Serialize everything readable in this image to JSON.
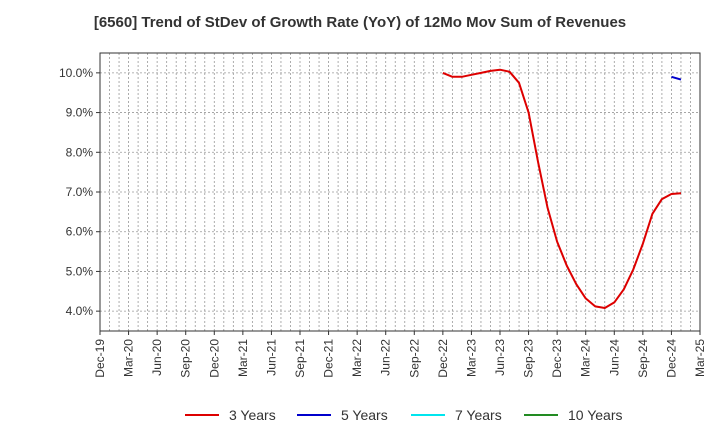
{
  "chart_data": {
    "type": "line",
    "title": "[6560]  Trend of StDev of Growth Rate (YoY) of 12Mo Mov Sum of Revenues",
    "xlabel": "",
    "ylabel": "",
    "ylim": [
      3.5,
      10.5
    ],
    "y_ticks": [
      4.0,
      5.0,
      6.0,
      7.0,
      8.0,
      9.0,
      10.0
    ],
    "y_tick_labels": [
      "4.0%",
      "5.0%",
      "6.0%",
      "7.0%",
      "8.0%",
      "9.0%",
      "10.0%"
    ],
    "x_ticks": [
      "Dec-19",
      "Mar-20",
      "Jun-20",
      "Sep-20",
      "Dec-20",
      "Mar-21",
      "Jun-21",
      "Sep-21",
      "Dec-21",
      "Mar-22",
      "Jun-22",
      "Sep-22",
      "Dec-22",
      "Mar-23",
      "Jun-23",
      "Sep-23",
      "Dec-23",
      "Mar-24",
      "Jun-24",
      "Sep-24",
      "Dec-24",
      "Mar-25"
    ],
    "grid": true,
    "legend_position": "bottom",
    "series": [
      {
        "name": "3 Years",
        "color": "#dd0000",
        "points": [
          {
            "x": 36,
            "y": 10.0
          },
          {
            "x": 37,
            "y": 9.9
          },
          {
            "x": 38,
            "y": 9.9
          },
          {
            "x": 39,
            "y": 9.95
          },
          {
            "x": 40,
            "y": 10.0
          },
          {
            "x": 41,
            "y": 10.05
          },
          {
            "x": 42,
            "y": 10.08
          },
          {
            "x": 43,
            "y": 10.03
          },
          {
            "x": 44,
            "y": 9.75
          },
          {
            "x": 45,
            "y": 9.0
          },
          {
            "x": 46,
            "y": 7.75
          },
          {
            "x": 47,
            "y": 6.6
          },
          {
            "x": 48,
            "y": 5.75
          },
          {
            "x": 49,
            "y": 5.15
          },
          {
            "x": 50,
            "y": 4.68
          },
          {
            "x": 51,
            "y": 4.32
          },
          {
            "x": 52,
            "y": 4.12
          },
          {
            "x": 53,
            "y": 4.08
          },
          {
            "x": 54,
            "y": 4.22
          },
          {
            "x": 55,
            "y": 4.55
          },
          {
            "x": 56,
            "y": 5.05
          },
          {
            "x": 57,
            "y": 5.7
          },
          {
            "x": 58,
            "y": 6.45
          },
          {
            "x": 59,
            "y": 6.82
          },
          {
            "x": 60,
            "y": 6.95
          },
          {
            "x": 61,
            "y": 6.97
          }
        ]
      },
      {
        "name": "5 Years",
        "color": "#0000cc",
        "points": [
          {
            "x": 60,
            "y": 9.9
          },
          {
            "x": 61,
            "y": 9.83
          }
        ]
      },
      {
        "name": "7 Years",
        "color": "#00e5ee",
        "points": []
      },
      {
        "name": "10 Years",
        "color": "#228b22",
        "points": []
      }
    ]
  }
}
